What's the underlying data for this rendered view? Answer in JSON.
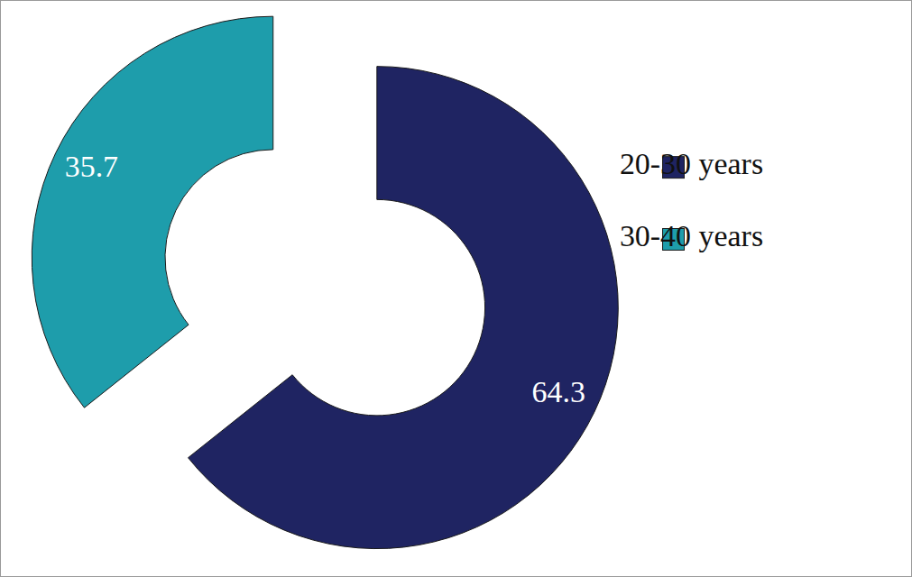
{
  "chart_data": {
    "type": "pie",
    "categories": [
      "20-30 years",
      "30-40 years"
    ],
    "values": [
      64.3,
      35.7
    ],
    "colors": [
      "#1f2462",
      "#1e9dab"
    ],
    "data_labels": true,
    "legend": "right"
  }
}
